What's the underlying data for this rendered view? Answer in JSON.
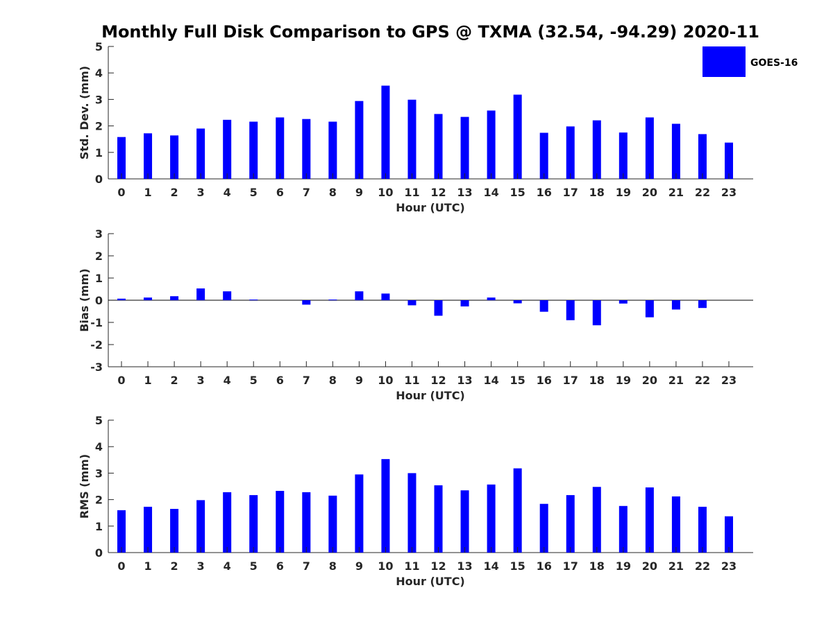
{
  "colors": {
    "bar": "#0000ff",
    "axis": "#262626"
  },
  "chart_data": {
    "type": "bar",
    "title": "Monthly Full Disk Comparison to GPS @ TXMA (32.54, -94.29) 2020-11",
    "legend": {
      "label": "GOES-16",
      "placement": "top-right"
    },
    "categories": [
      "0",
      "1",
      "2",
      "3",
      "4",
      "5",
      "6",
      "7",
      "8",
      "9",
      "10",
      "11",
      "12",
      "13",
      "14",
      "15",
      "16",
      "17",
      "18",
      "19",
      "20",
      "21",
      "22",
      "23"
    ],
    "panels": [
      {
        "name": "std-dev",
        "ylabel": "Std. Dev. (mm)",
        "xlabel": "Hour (UTC)",
        "ylim": [
          0,
          5
        ],
        "yticks": [
          "0",
          "1",
          "2",
          "3",
          "4",
          "5"
        ],
        "series": [
          {
            "name": "GOES-16",
            "values": [
              1.58,
              1.72,
              1.64,
              1.9,
              2.23,
              2.16,
              2.32,
              2.26,
              2.16,
              2.94,
              3.52,
              2.99,
              2.45,
              2.34,
              2.58,
              3.18,
              1.74,
              1.98,
              2.21,
              1.75,
              2.32,
              2.08,
              1.69,
              1.37
            ]
          }
        ]
      },
      {
        "name": "bias",
        "ylabel": "Bias (mm)",
        "xlabel": "Hour (UTC)",
        "ylim": [
          -3,
          3
        ],
        "yticks": [
          "-3",
          "-2",
          "-1",
          "0",
          "1",
          "2",
          "3"
        ],
        "series": [
          {
            "name": "GOES-16",
            "values": [
              0.07,
              0.12,
              0.18,
              0.53,
              0.4,
              0.03,
              0.0,
              -0.2,
              0.03,
              0.4,
              0.3,
              -0.23,
              -0.7,
              -0.28,
              0.12,
              -0.14,
              -0.52,
              -0.9,
              -1.13,
              -0.15,
              -0.77,
              -0.42,
              -0.35,
              0.0
            ]
          }
        ]
      },
      {
        "name": "rms",
        "ylabel": "RMS (mm)",
        "xlabel": "Hour (UTC)",
        "ylim": [
          0,
          5
        ],
        "yticks": [
          "0",
          "1",
          "2",
          "3",
          "4",
          "5"
        ],
        "series": [
          {
            "name": "GOES-16",
            "values": [
              1.6,
              1.73,
              1.65,
              1.98,
              2.28,
              2.17,
              2.33,
              2.28,
              2.15,
              2.95,
              3.53,
              3.0,
              2.54,
              2.35,
              2.57,
              3.18,
              1.84,
              2.17,
              2.48,
              1.76,
              2.46,
              2.12,
              1.73,
              1.37
            ]
          }
        ]
      }
    ]
  }
}
